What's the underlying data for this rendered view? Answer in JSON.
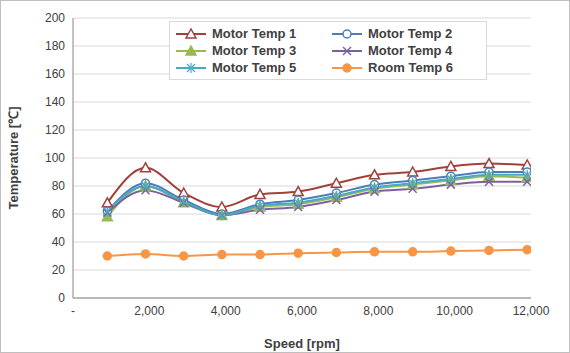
{
  "chart_data": {
    "type": "line",
    "x_label": "Speed [rpm]",
    "y_label": "Temperature [℃]",
    "x": [
      900,
      1900,
      2900,
      3900,
      4900,
      5900,
      6900,
      7900,
      8900,
      9900,
      10900,
      11900
    ],
    "series": [
      {
        "name": "Motor Temp 1",
        "color": "#a0413b",
        "marker": "open_triangle",
        "values": [
          68,
          93,
          75,
          65,
          74,
          76,
          82,
          88,
          90,
          94,
          96,
          95
        ]
      },
      {
        "name": "Motor Temp 2",
        "color": "#4a7ebb",
        "marker": "open_circle",
        "values": [
          62,
          82,
          70,
          60,
          67,
          70,
          75,
          81,
          84,
          87,
          90,
          90
        ]
      },
      {
        "name": "Motor Temp 3",
        "color": "#98b954",
        "marker": "triangle",
        "values": [
          58,
          80,
          68,
          59,
          65,
          67,
          72,
          78,
          81,
          84,
          87,
          86
        ]
      },
      {
        "name": "Motor Temp 4",
        "color": "#7d60a0",
        "marker": "x",
        "values": [
          61,
          77,
          68,
          59,
          63,
          65,
          70,
          76,
          78,
          81,
          83,
          83
        ]
      },
      {
        "name": "Motor Temp 5",
        "color": "#46aac5",
        "marker": "star",
        "values": [
          62,
          80,
          69,
          59,
          66,
          68,
          73,
          79,
          82,
          85,
          88,
          88
        ]
      },
      {
        "name": "Room Temp 6",
        "color": "#f79646",
        "marker": "circle",
        "values": [
          30,
          31.5,
          30,
          31,
          31,
          32,
          32.5,
          33,
          33,
          33.5,
          34,
          34.5
        ]
      }
    ],
    "xlim": [
      0,
      12000
    ],
    "xticks": [
      {
        "value": 0,
        "label": "-"
      },
      {
        "value": 2000,
        "label": "2,000"
      },
      {
        "value": 4000,
        "label": "4,000"
      },
      {
        "value": 6000,
        "label": "6,000"
      },
      {
        "value": 8000,
        "label": "8,000"
      },
      {
        "value": 10000,
        "label": "10,000"
      },
      {
        "value": 12000,
        "label": "12,000"
      }
    ],
    "ylim": [
      0,
      200
    ],
    "yticks": [
      0,
      20,
      40,
      60,
      80,
      100,
      120,
      140,
      160,
      180,
      200
    ],
    "grid": true,
    "legend": "top"
  }
}
